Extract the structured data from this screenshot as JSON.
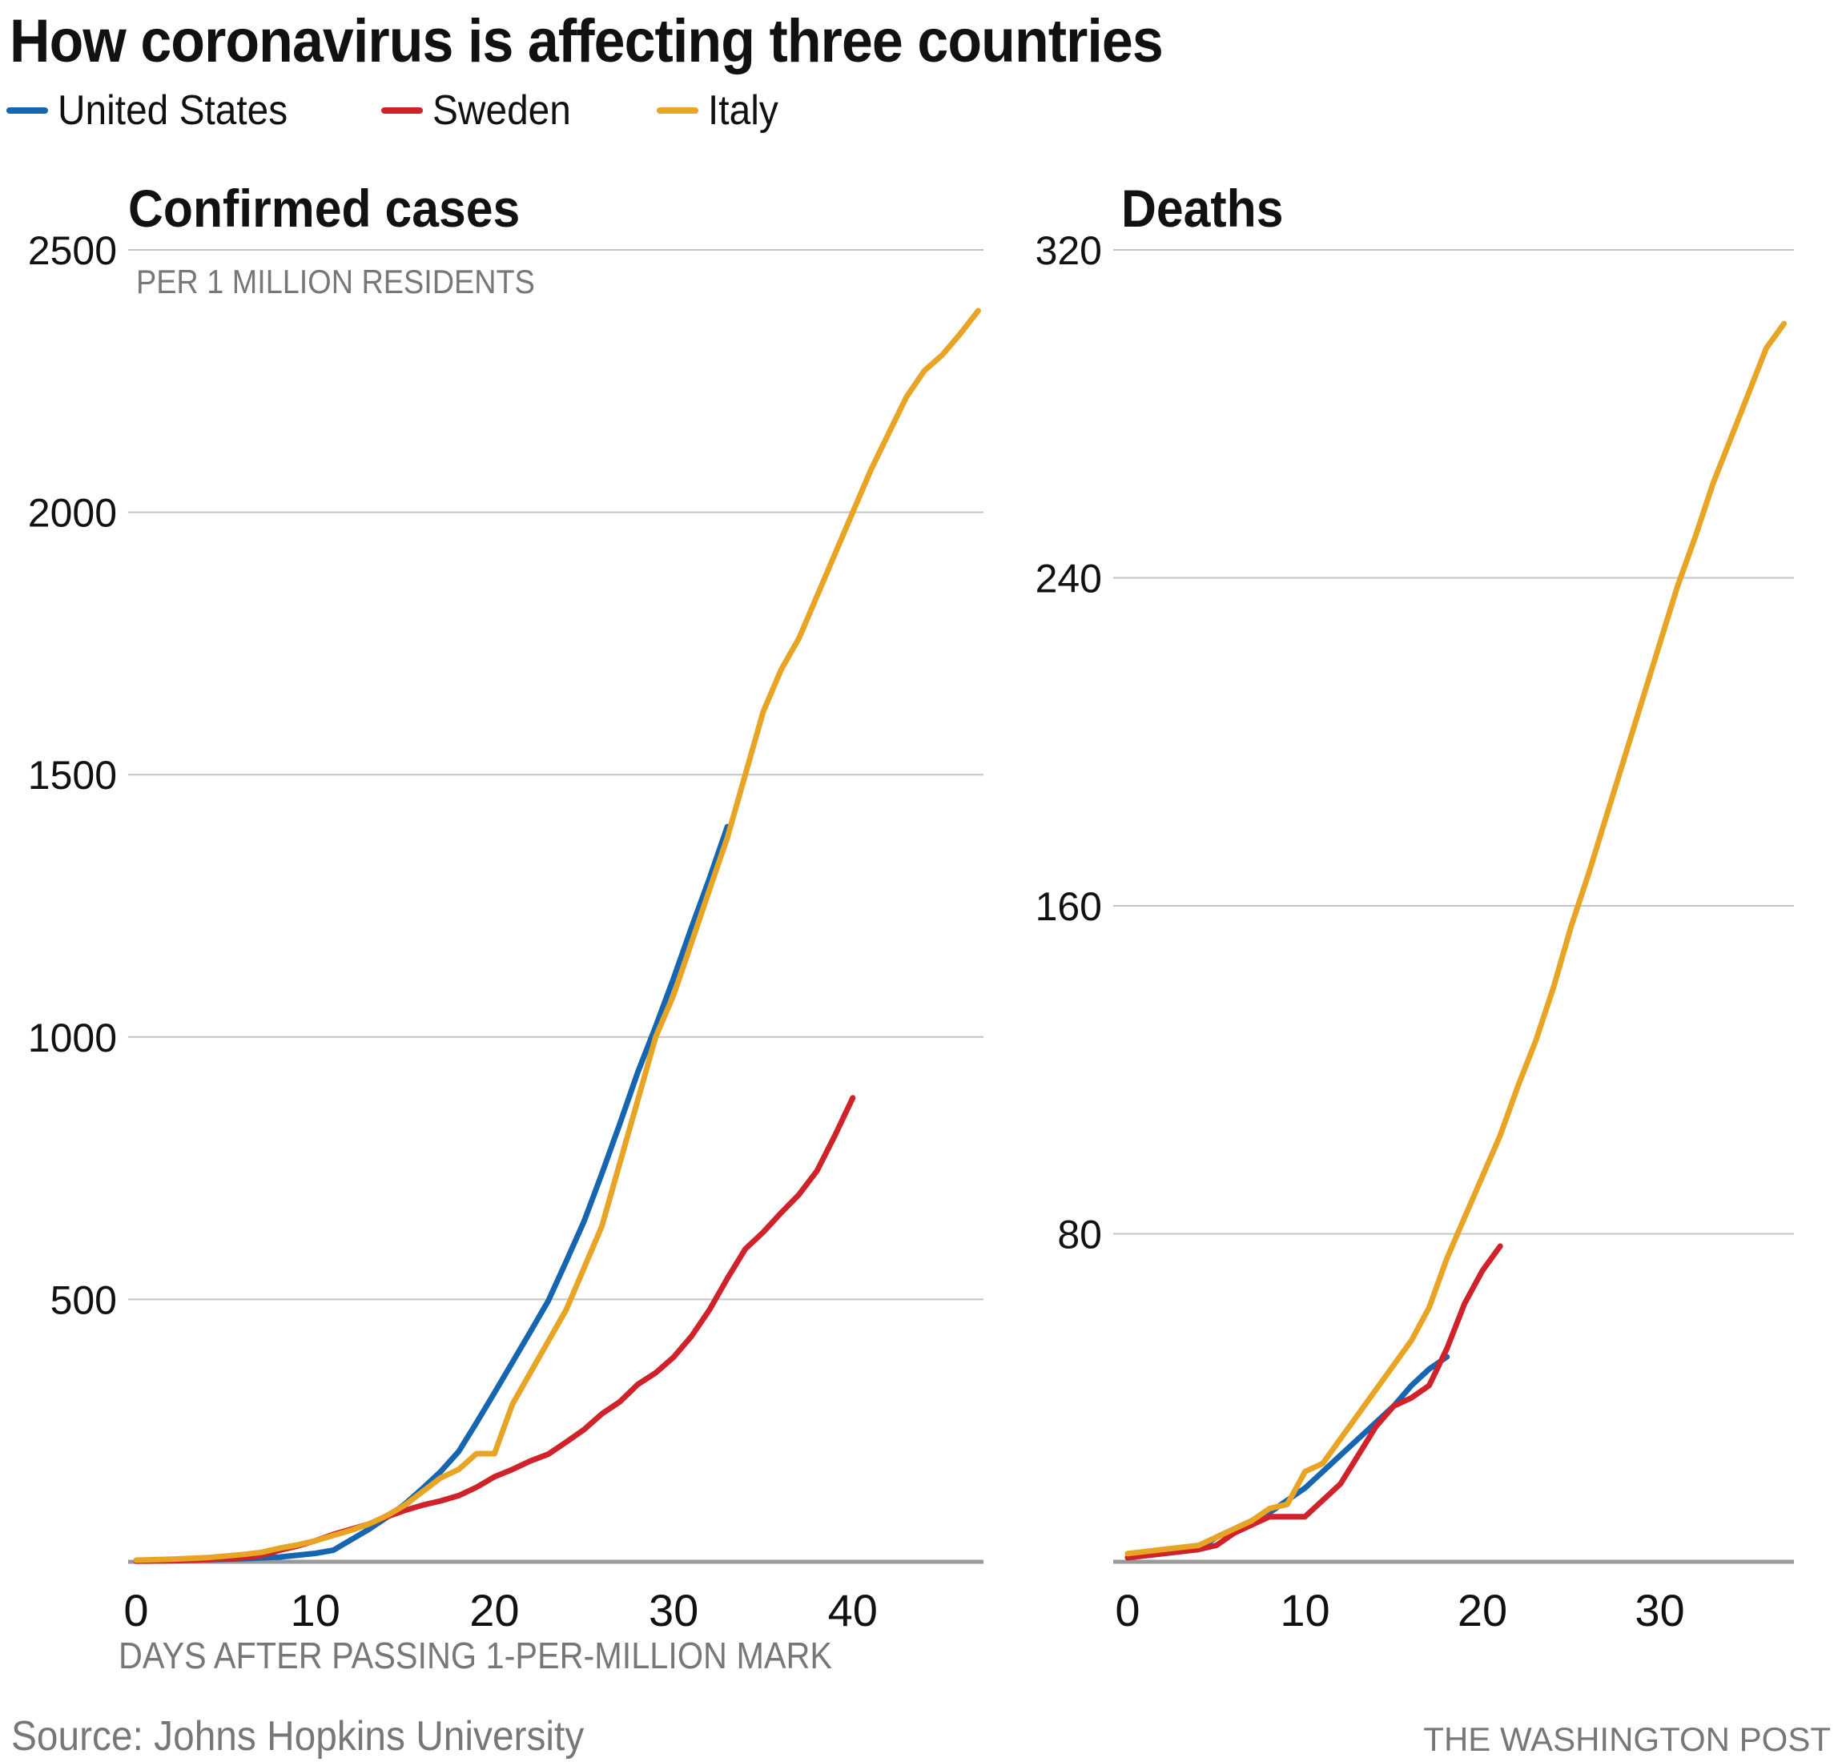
{
  "title": "How coronavirus is affecting three countries",
  "legend": [
    {
      "label": "United States",
      "color": "#1565b0"
    },
    {
      "label": "Sweden",
      "color": "#d0222a"
    },
    {
      "label": "Italy",
      "color": "#e8a425"
    }
  ],
  "footer": {
    "source": "Source: Johns Hopkins University",
    "credit": "THE WASHINGTON POST"
  },
  "chart_data": [
    {
      "type": "line",
      "title": "Confirmed cases",
      "subtitle": "PER 1 MILLION RESIDENTS",
      "xlabel": "DAYS AFTER PASSING 1-PER-MILLION MARK",
      "ylabel": "",
      "xlim": [
        0,
        48
      ],
      "ylim": [
        0,
        2500
      ],
      "xticks": [
        0,
        10,
        20,
        30,
        40
      ],
      "yticks": [
        500,
        1000,
        1500,
        2000,
        2500
      ],
      "ytick_labels": [
        "500",
        "1000",
        "1500",
        "2000",
        "2500"
      ],
      "grid": true,
      "series": [
        {
          "name": "United States",
          "color": "#1565b0",
          "x": [
            0,
            2,
            4,
            6,
            8,
            10,
            11,
            12,
            13,
            14,
            15,
            16,
            17,
            18,
            19,
            20,
            21,
            22,
            23,
            24,
            25,
            26,
            27,
            28,
            29,
            30,
            31,
            32,
            33
          ],
          "y": [
            2,
            3,
            4,
            6,
            9,
            16,
            22,
            42,
            62,
            85,
            110,
            140,
            172,
            210,
            265,
            322,
            380,
            438,
            497,
            572,
            649,
            740,
            835,
            933,
            1020,
            1112,
            1209,
            1302,
            1401
          ]
        },
        {
          "name": "Sweden",
          "color": "#d0222a",
          "x": [
            0,
            2,
            4,
            6,
            7,
            8,
            9,
            10,
            11,
            12,
            13,
            14,
            15,
            16,
            17,
            18,
            19,
            20,
            21,
            22,
            23,
            24,
            25,
            26,
            27,
            28,
            29,
            30,
            31,
            32,
            33,
            34,
            35,
            36,
            37,
            38,
            39,
            40
          ],
          "y": [
            1,
            2,
            4,
            8,
            12,
            22,
            30,
            40,
            52,
            62,
            72,
            86,
            98,
            108,
            116,
            126,
            142,
            162,
            176,
            192,
            205,
            228,
            252,
            282,
            305,
            338,
            360,
            390,
            430,
            480,
            540,
            596,
            628,
            665,
            700,
            745,
            812,
            884
          ]
        },
        {
          "name": "Italy",
          "color": "#e8a425",
          "x": [
            0,
            2,
            4,
            6,
            7,
            8,
            9,
            10,
            11,
            12,
            13,
            14,
            15,
            16,
            17,
            18,
            19,
            20,
            21,
            22,
            23,
            24,
            25,
            26,
            27,
            28,
            29,
            30,
            31,
            32,
            33,
            34,
            35,
            36,
            37,
            38,
            39,
            40,
            41,
            42,
            43,
            44,
            45,
            46,
            47
          ],
          "y": [
            3,
            5,
            8,
            14,
            18,
            26,
            32,
            40,
            50,
            60,
            72,
            88,
            108,
            134,
            160,
            176,
            206,
            206,
            300,
            360,
            420,
            480,
            560,
            640,
            760,
            880,
            1000,
            1080,
            1180,
            1280,
            1380,
            1500,
            1620,
            1700,
            1760,
            1840,
            1920,
            2000,
            2080,
            2150,
            2220,
            2270,
            2300,
            2340,
            2384
          ]
        }
      ]
    },
    {
      "type": "line",
      "title": "Deaths",
      "subtitle": "",
      "xlabel": "",
      "ylabel": "",
      "xlim": [
        0,
        38
      ],
      "ylim": [
        0,
        320
      ],
      "xticks": [
        0,
        10,
        20,
        30
      ],
      "yticks": [
        80,
        160,
        240,
        320
      ],
      "ytick_labels": [
        "80",
        "160",
        "240",
        "320"
      ],
      "grid": true,
      "series": [
        {
          "name": "United States",
          "color": "#1565b0",
          "x": [
            0,
            2,
            4,
            5,
            6,
            7,
            8,
            9,
            10,
            11,
            12,
            13,
            14,
            15,
            16,
            17,
            18
          ],
          "y": [
            1,
            2,
            3,
            6,
            8,
            10,
            12,
            15,
            18,
            22,
            26,
            30,
            34,
            38,
            43,
            47,
            50
          ]
        },
        {
          "name": "Sweden",
          "color": "#d0222a",
          "x": [
            0,
            2,
            4,
            5,
            6,
            7,
            8,
            9,
            10,
            11,
            12,
            13,
            14,
            15,
            16,
            17,
            18,
            19,
            20,
            21
          ],
          "y": [
            1,
            2,
            3,
            4,
            7,
            9,
            11,
            11,
            11,
            15,
            19,
            26,
            33,
            38,
            40,
            43,
            52,
            63,
            71,
            77
          ]
        },
        {
          "name": "Italy",
          "color": "#e8a425",
          "x": [
            0,
            2,
            4,
            5,
            6,
            7,
            8,
            9,
            10,
            11,
            12,
            13,
            14,
            15,
            16,
            17,
            18,
            19,
            20,
            21,
            22,
            23,
            24,
            25,
            26,
            27,
            28,
            29,
            30,
            31,
            32,
            33,
            34,
            35,
            36,
            37
          ],
          "y": [
            2,
            3,
            4,
            6,
            8,
            10,
            13,
            14,
            22,
            24,
            30,
            36,
            42,
            48,
            54,
            62,
            74,
            84,
            94,
            104,
            116,
            127,
            140,
            155,
            168,
            182,
            196,
            210,
            224,
            238,
            250,
            263,
            274,
            285,
            296,
            302
          ]
        }
      ]
    }
  ]
}
